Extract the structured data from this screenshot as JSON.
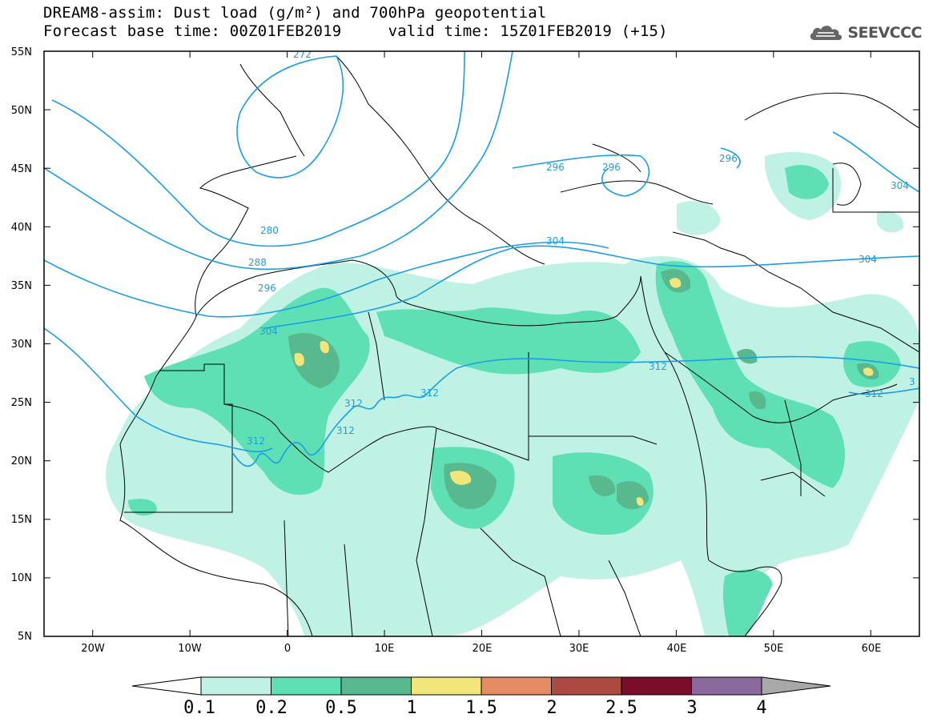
{
  "header": {
    "title_line1": "DREAM8-assim: Dust load (g/m²) and 700hPa geopotential",
    "title_line2": "Forecast base time: 00Z01FEB2019     valid time: 15Z01FEB2019 (+15)",
    "logo_text": "SEEVCCC",
    "logo_icon": "cloud-icon"
  },
  "map": {
    "lon_range": [
      -25,
      65
    ],
    "lat_range": [
      5,
      55
    ],
    "lat_ticks": [
      "5N",
      "10N",
      "15N",
      "20N",
      "25N",
      "30N",
      "35N",
      "40N",
      "45N",
      "50N",
      "55N"
    ],
    "lon_ticks": [
      "20W",
      "10W",
      "0",
      "10E",
      "20E",
      "30E",
      "40E",
      "50E",
      "60E"
    ],
    "contour_color": "#1a9ee6",
    "contour_labels": [
      "272",
      "280",
      "288",
      "296",
      "304",
      "312",
      "296",
      "296",
      "296",
      "304",
      "304",
      "312",
      "312",
      "312",
      "312",
      "312",
      "304",
      "312",
      "3"
    ]
  },
  "colorbar": {
    "levels": [
      "0.1",
      "0.2",
      "0.5",
      "1",
      "1.5",
      "2",
      "2.5",
      "3",
      "4"
    ],
    "colors": [
      "#bff2e4",
      "#5ee0b4",
      "#58b98e",
      "#f2e67a",
      "#e58c64",
      "#aa4a40",
      "#7a0e2a",
      "#8a6a9e"
    ],
    "under_color": "#ffffff",
    "over_color": "#a8a8a8"
  }
}
